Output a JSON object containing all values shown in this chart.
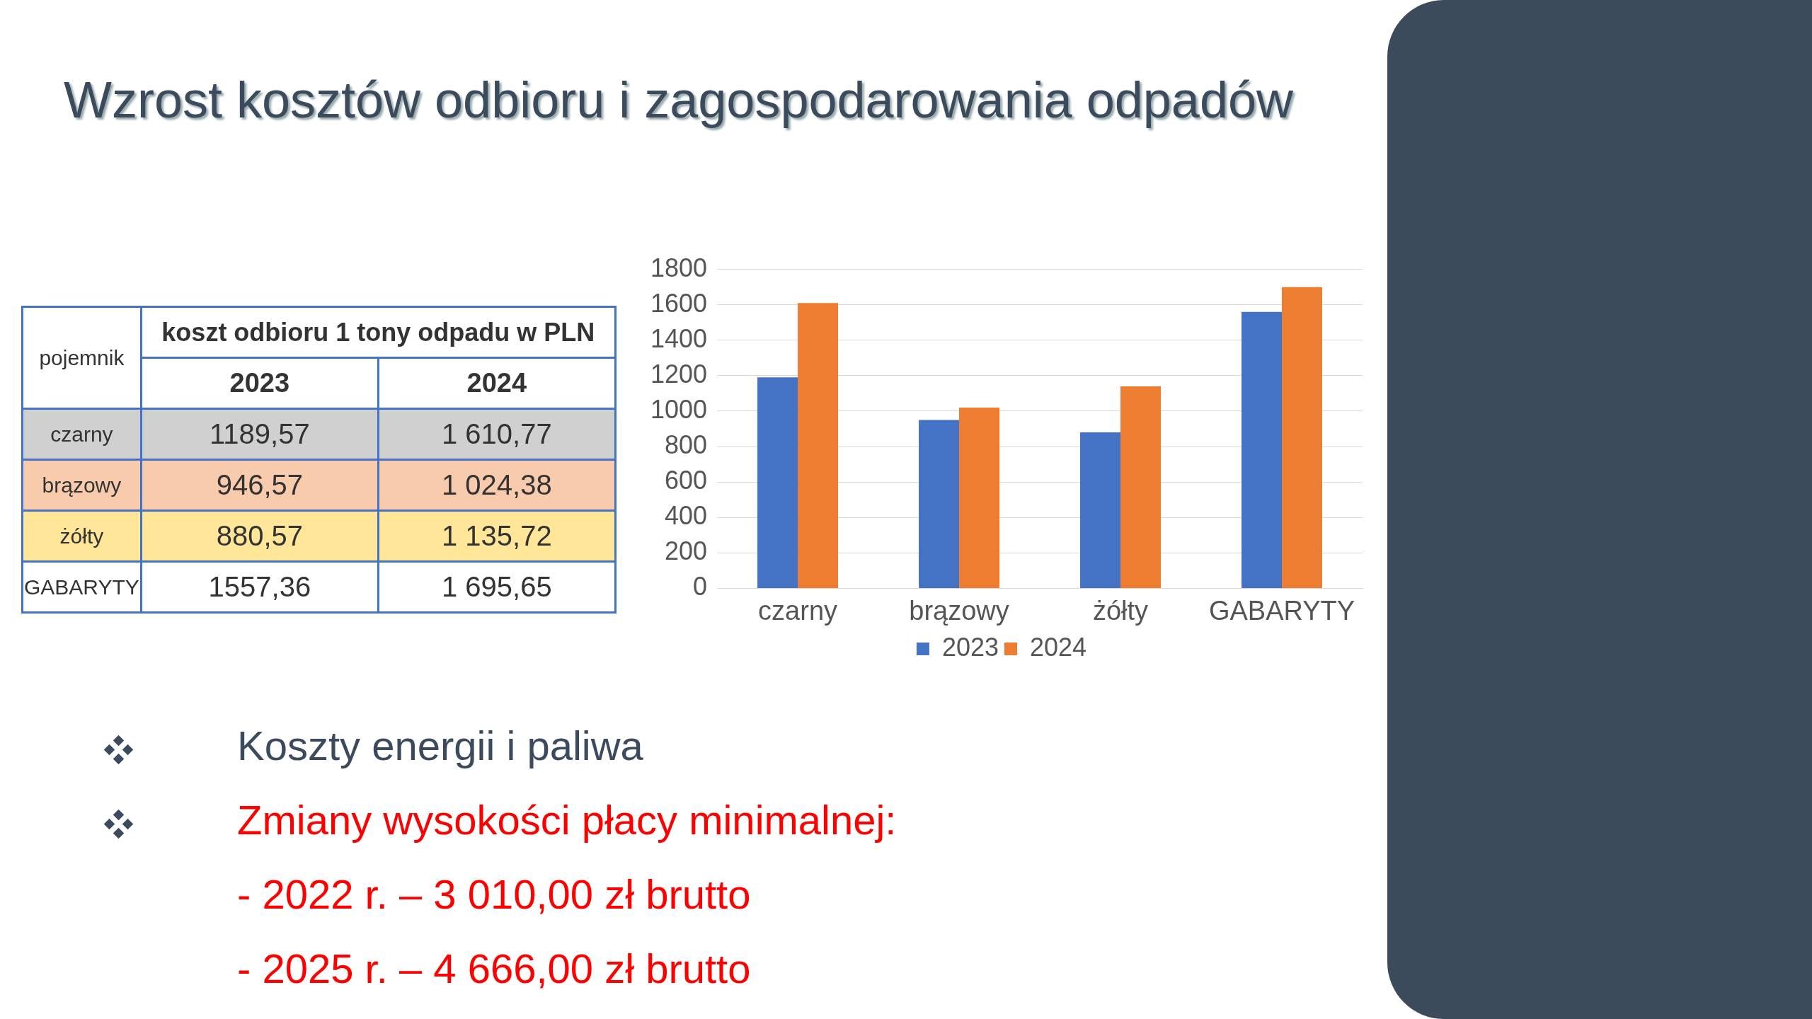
{
  "chart_data": [
    {
      "type": "heatmap",
      "title": "koszt odbioru 1 tony odpadu w PLN",
      "ylabel": "pojemnik",
      "categories": [
        "2023",
        "2024"
      ],
      "y_categories": [
        "czarny",
        "brązowy",
        "żółty",
        "GABARYTY"
      ],
      "cells": [
        [
          1189.57,
          1610.77
        ],
        [
          946.57,
          1024.38
        ],
        [
          880.57,
          1135.72
        ],
        [
          1557.36,
          1695.65
        ]
      ],
      "cell_labels": [
        [
          "1189,57",
          "1 610,77"
        ],
        [
          "946,57",
          "1 024,38"
        ],
        [
          "880,57",
          "1 135,72"
        ],
        [
          "1557,36",
          "1 695,65"
        ]
      ]
    },
    {
      "type": "bar",
      "title": "Wzrost kosztów odbioru i zagospodarowania odpadów",
      "categories": [
        "czarny",
        "brązowy",
        "żółty",
        "GABARYTY"
      ],
      "series": [
        {
          "name": "2023",
          "color": "#4472c4",
          "values": [
            1190,
            950,
            880,
            1560
          ]
        },
        {
          "name": "2024",
          "color": "#ed7d31",
          "values": [
            1610,
            1020,
            1140,
            1700
          ]
        }
      ],
      "ylim": [
        0,
        1800
      ],
      "yticks": [
        0,
        200,
        400,
        600,
        800,
        1000,
        1200,
        1400,
        1600,
        1800
      ],
      "grid": "y",
      "legend": "bottom",
      "annotations": [
        "Koszty energii i paliwa",
        "Zmiany wysokości płacy minimalnej:",
        "- 2022 r. – 3 010,00 zł brutto",
        "- 2025 r. – 4 666,00 zł brutto"
      ]
    }
  ]
}
